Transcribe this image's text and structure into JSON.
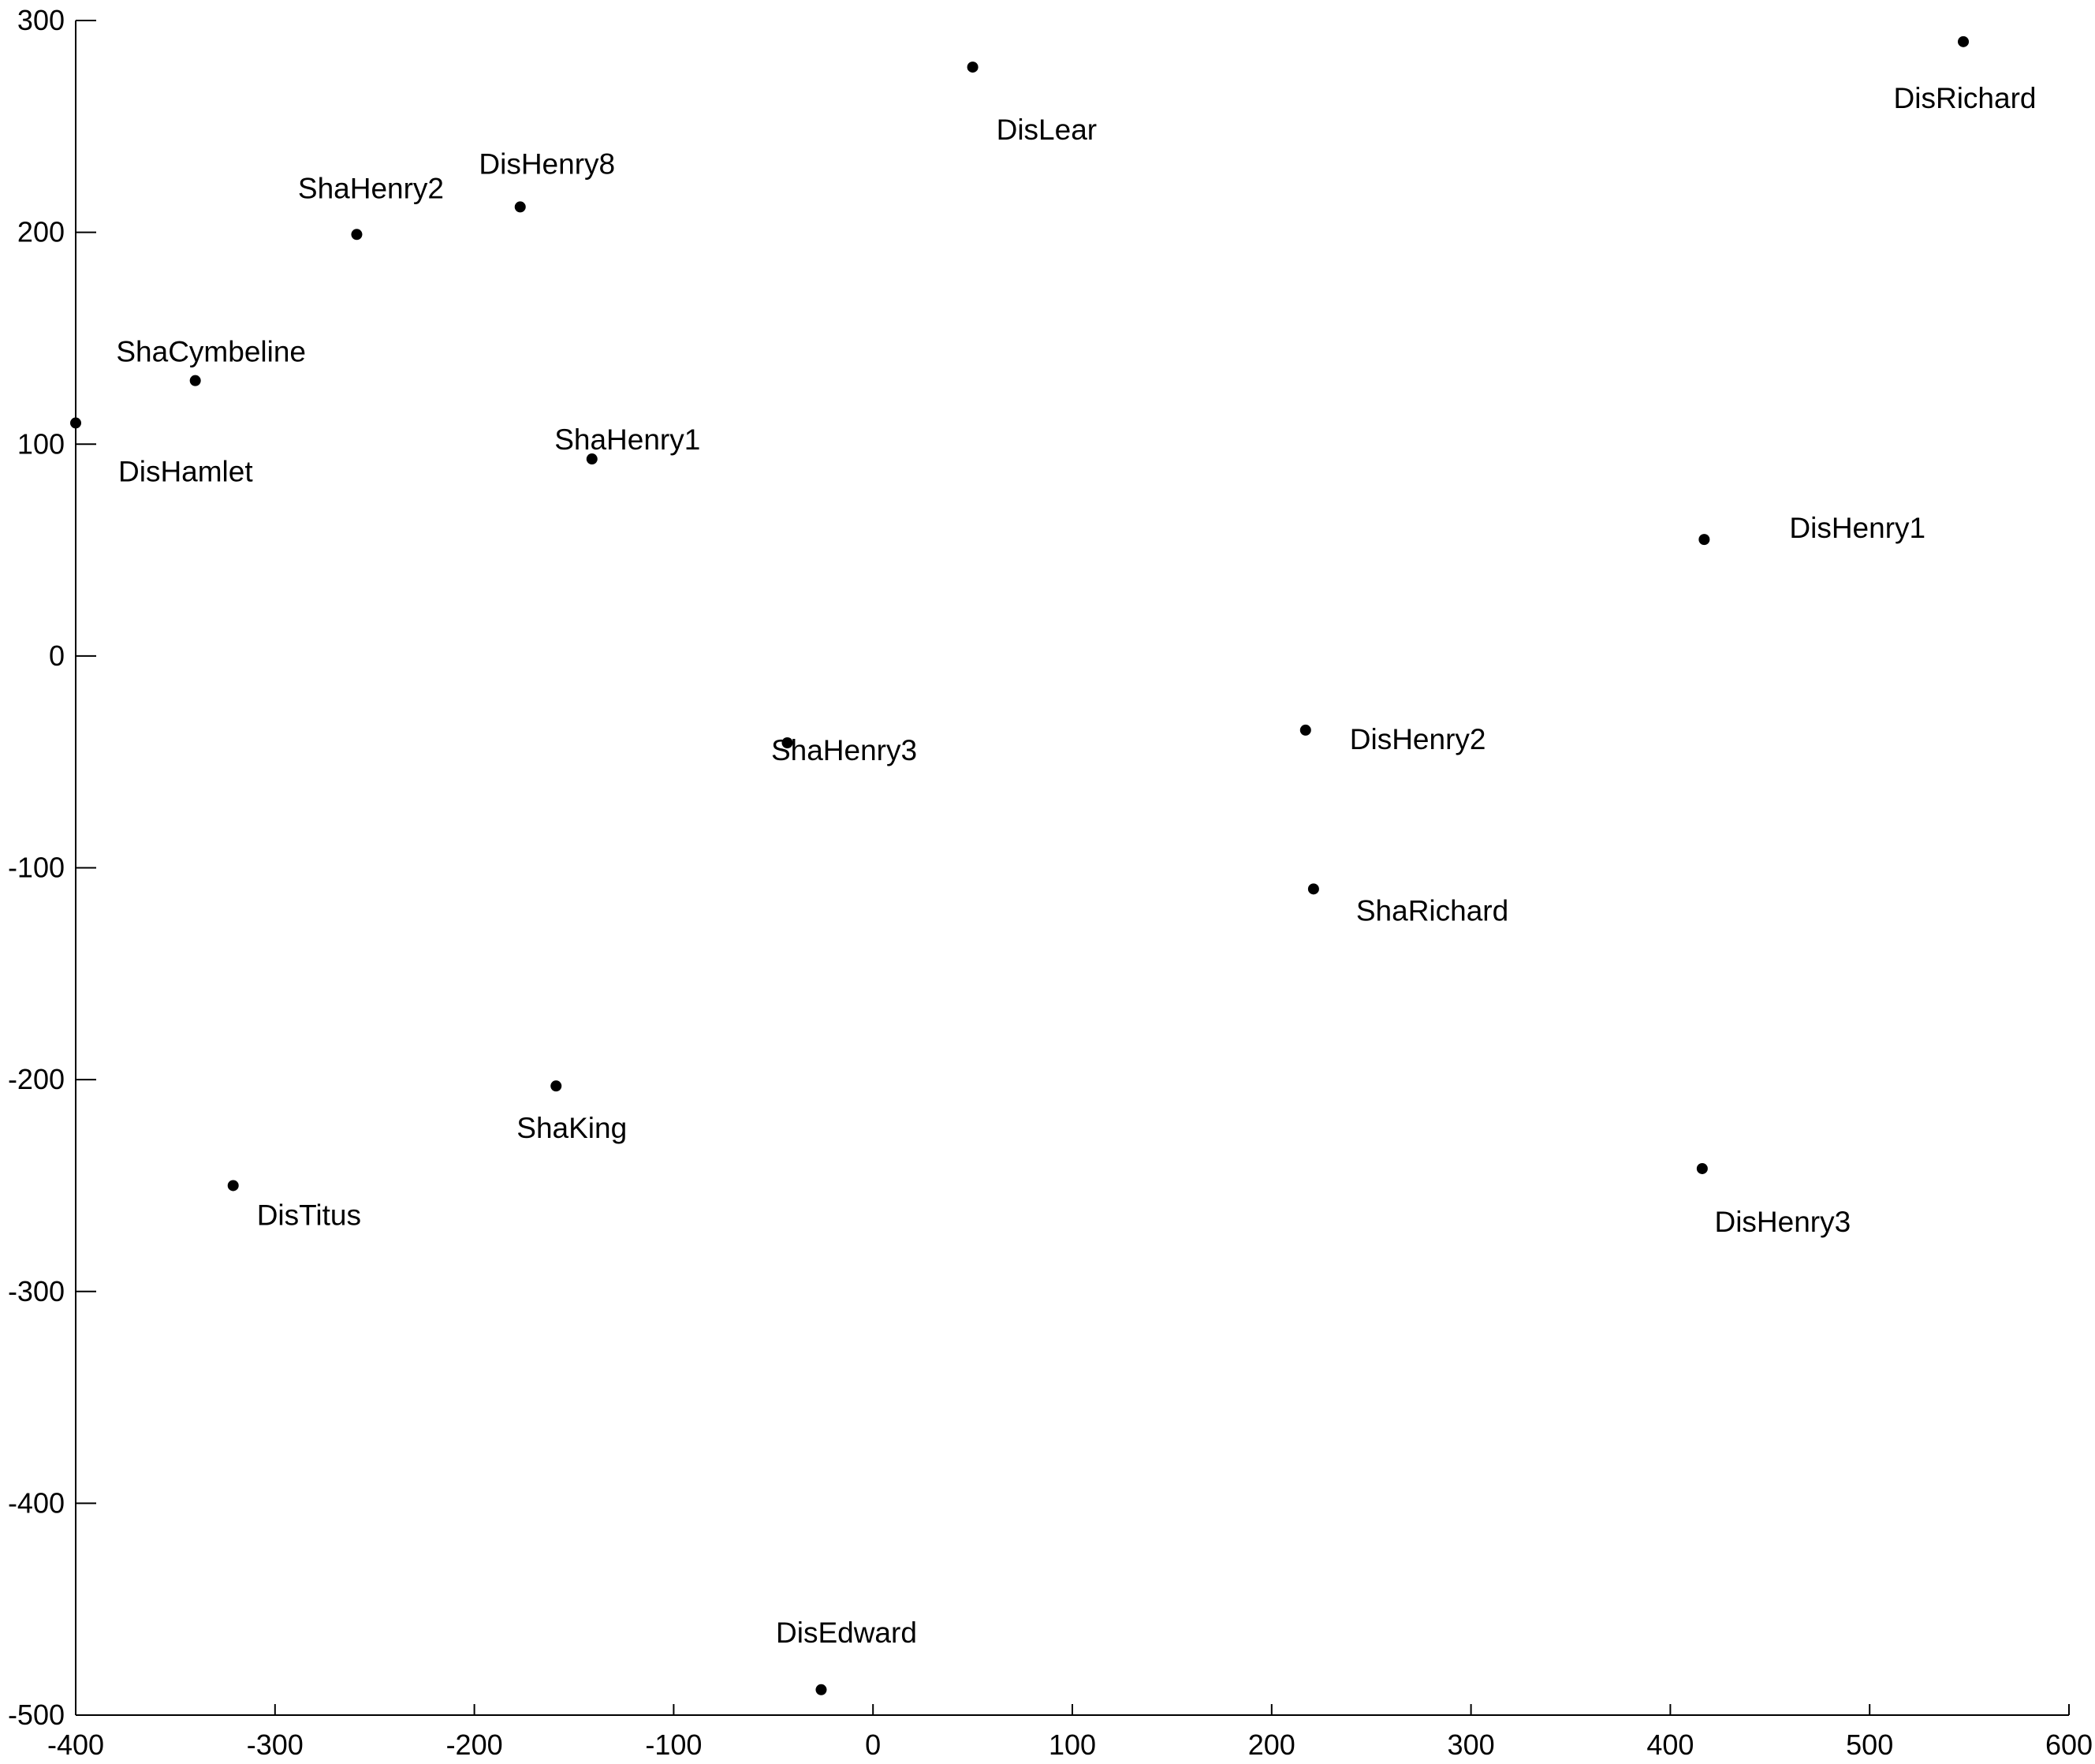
{
  "chart_data": {
    "type": "scatter",
    "title": "",
    "xlabel": "",
    "ylabel": "",
    "xlim": [
      -400,
      600
    ],
    "ylim": [
      -500,
      300
    ],
    "x_ticks": [
      -400,
      -300,
      -200,
      -100,
      0,
      100,
      200,
      300,
      400,
      500,
      600
    ],
    "y_ticks": [
      -500,
      -400,
      -300,
      -200,
      -100,
      0,
      100,
      200,
      300
    ],
    "x_tick_labels": [
      "-400",
      "-300",
      "-200",
      "-100",
      "0",
      "100",
      "200",
      "300",
      "400",
      "500",
      "600"
    ],
    "y_tick_labels": [
      "-500",
      "-400",
      "-300",
      "-200",
      "-100",
      "0",
      "100",
      "200",
      "300"
    ],
    "grid": false,
    "legend": false,
    "marker_color": "#000000",
    "points": [
      {
        "label": "DisRichard",
        "x": 547,
        "y": 290,
        "label_pos": "below"
      },
      {
        "label": "DisLear",
        "x": 50,
        "y": 278,
        "label_pos": "below-right"
      },
      {
        "label": "DisHenry8",
        "x": -177,
        "y": 212,
        "label_pos": "above"
      },
      {
        "label": "ShaHenry2",
        "x": -259,
        "y": 199,
        "label_pos": "above"
      },
      {
        "label": "ShaCymbeline",
        "x": -340,
        "y": 130,
        "label_pos": "above"
      },
      {
        "label": "DisHamlet",
        "x": -400,
        "y": 110,
        "label_pos": "below-right"
      },
      {
        "label": "ShaHenry1",
        "x": -141,
        "y": 93,
        "label_pos": "above"
      },
      {
        "label": "DisHenry1",
        "x": 417,
        "y": 55,
        "label_pos": "right"
      },
      {
        "label": "ShaHenry3",
        "x": -43,
        "y": -41,
        "label_pos": "below"
      },
      {
        "label": "DisHenry2",
        "x": 217,
        "y": -35,
        "label_pos": "right"
      },
      {
        "label": "ShaRichard",
        "x": 221,
        "y": -110,
        "label_pos": "right"
      },
      {
        "label": "ShaKing",
        "x": -159,
        "y": -203,
        "label_pos": "below"
      },
      {
        "label": "DisTitus",
        "x": -321,
        "y": -250,
        "label_pos": "below-right"
      },
      {
        "label": "DisHenry3",
        "x": 416,
        "y": -242,
        "label_pos": "below-right"
      },
      {
        "label": "DisEdward",
        "x": -26,
        "y": -488,
        "label_pos": "above"
      }
    ]
  }
}
